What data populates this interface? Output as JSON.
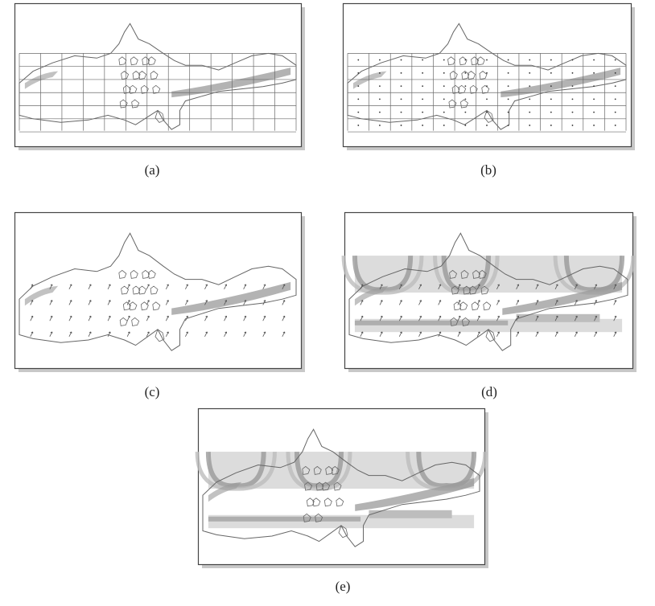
{
  "figure": {
    "panels": [
      {
        "id": "a",
        "caption": "(a)",
        "content": "grid"
      },
      {
        "id": "b",
        "caption": "(b)",
        "content": "grid-with-points"
      },
      {
        "id": "c",
        "caption": "(c)",
        "content": "vectors"
      },
      {
        "id": "d",
        "caption": "(d)",
        "content": "vectors-with-shading"
      },
      {
        "id": "e",
        "caption": "(e)",
        "content": "shading"
      }
    ],
    "colors": {
      "outline": "#666666",
      "grid": "#6a6a6a",
      "band_dark": "#9a9a9a",
      "band_mid": "#bdbdbd",
      "band_light": "#dcdcdc",
      "frame": "#444444",
      "shadow": "#c8c8c8"
    }
  }
}
